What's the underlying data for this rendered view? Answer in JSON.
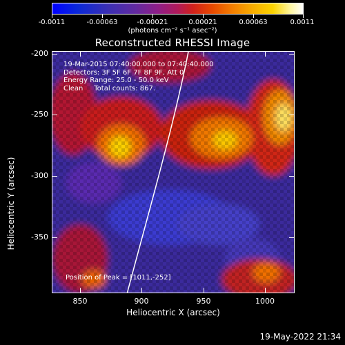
{
  "colorbar": {
    "ticks": [
      "-0.0011",
      "-0.00063",
      "-0.00021",
      "0.00021",
      "0.00063",
      "0.0011"
    ],
    "units": "(photons cm⁻² s⁻¹ asec⁻²)",
    "colors": [
      "#0000ff",
      "#612aa0",
      "#b01a5a",
      "#e84a00",
      "#f8ad00",
      "#ffffff"
    ]
  },
  "title": "Reconstructed RHESSI Image",
  "info": {
    "line1": "19-Mar-2015 07:40:00.000 to 07:40:40.000",
    "line2": "Detectors: 3F 5F 6F 7F 8F 9F, Att 0",
    "line3": "Energy Range: 25.0 - 50.0 keV",
    "line4": "Clean     Total counts: 867."
  },
  "peak_label": "Position of Peak = [1011,-252]",
  "axes": {
    "xlabel": "Heliocentric X (arcsec)",
    "ylabel": "Heliocentric Y (arcsec)",
    "xticks": [
      "850",
      "900",
      "950",
      "1000"
    ],
    "yticks": [
      "-200",
      "-250",
      "-300",
      "-350"
    ],
    "xlim": [
      830,
      1022
    ],
    "ylim": [
      -391,
      -200
    ]
  },
  "timestamp": "19-May-2022 21:34"
}
